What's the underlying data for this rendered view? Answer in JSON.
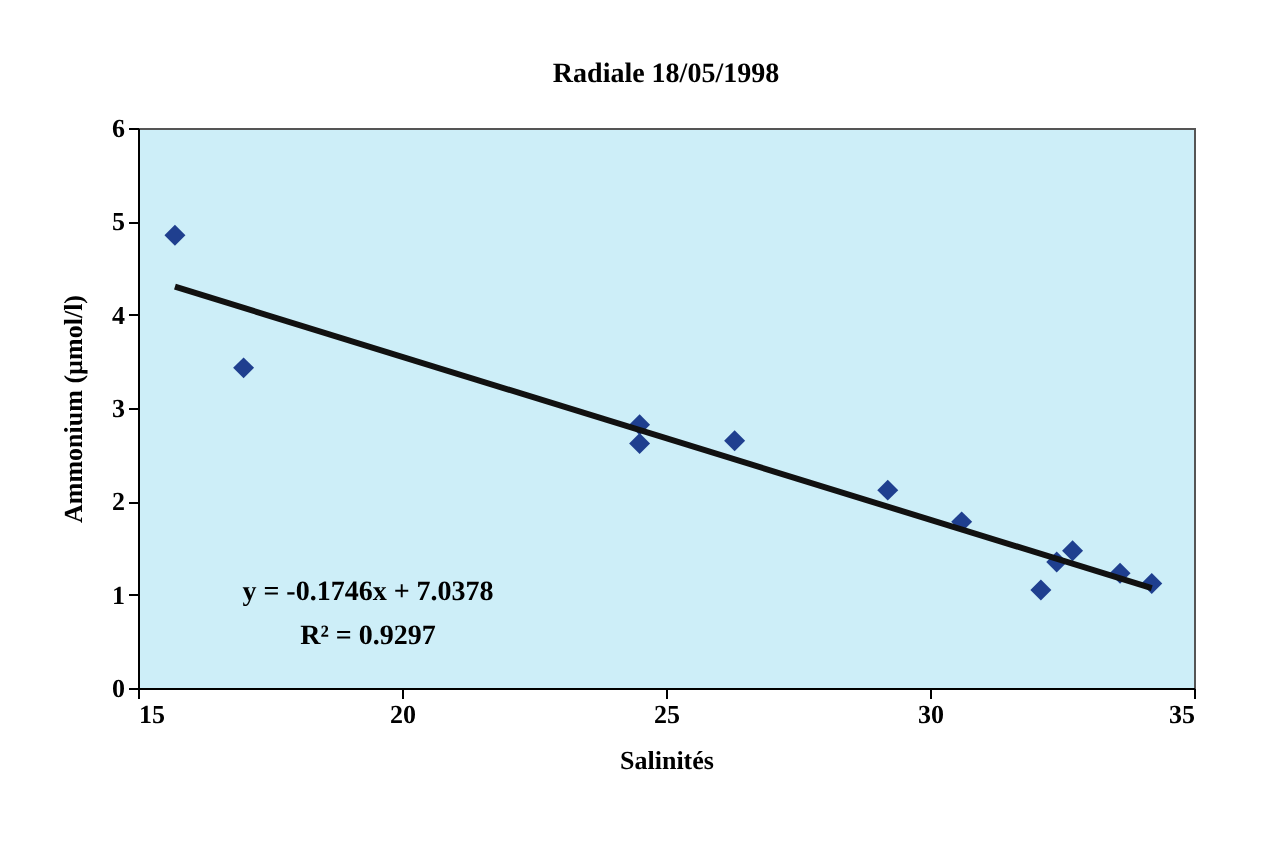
{
  "chart_data": {
    "type": "scatter",
    "title": "Radiale 18/05/1998",
    "xlabel": "Salinités",
    "ylabel": "Ammonium (µmol/l)",
    "xlim": [
      15,
      35
    ],
    "xticks": [
      15,
      20,
      25,
      30,
      35
    ],
    "ylim": [
      0,
      6
    ],
    "yticks": [
      0,
      1,
      2,
      3,
      4,
      5,
      6
    ],
    "grid": false,
    "series": [
      {
        "color": "#1f3f8f",
        "marker": "diamond",
        "x": [
          15.7,
          17.0,
          24.5,
          24.5,
          26.3,
          29.2,
          30.6,
          32.1,
          32.4,
          32.7,
          33.6,
          34.2
        ],
        "values": [
          4.85,
          3.43,
          2.82,
          2.62,
          2.65,
          2.12,
          1.78,
          1.05,
          1.35,
          1.47,
          1.23,
          1.12
        ]
      },
      {
        "type": "line",
        "color": "#111111",
        "line_style": "solid",
        "x": [
          15.7,
          34.2
        ],
        "values": [
          4.3,
          1.07
        ]
      }
    ],
    "annotations": [
      "y = -0.1746x + 7.0378",
      "R² = 0.9297"
    ]
  }
}
